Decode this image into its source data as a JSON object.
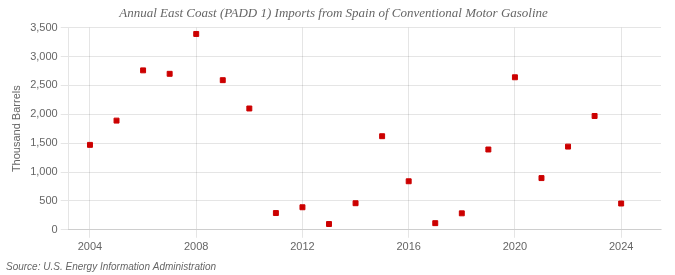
{
  "chart_data": {
    "type": "scatter",
    "title": "Annual East Coast (PADD 1) Imports from Spain of Conventional Motor Gasoline",
    "ylabel": "Thousand Barrels",
    "source": "Source: U.S. Energy Information Administration",
    "x": [
      2004,
      2005,
      2006,
      2007,
      2008,
      2009,
      2010,
      2011,
      2012,
      2013,
      2014,
      2015,
      2016,
      2017,
      2018,
      2019,
      2020,
      2021,
      2022,
      2023,
      2024
    ],
    "values": [
      1470,
      1890,
      2760,
      2700,
      3390,
      2590,
      2100,
      290,
      390,
      100,
      460,
      1620,
      840,
      115,
      285,
      1390,
      2640,
      895,
      1440,
      1970,
      455
    ],
    "color": "#cc0000",
    "marker": "square",
    "xlim": [
      2003.2,
      2025.5
    ],
    "ylim": [
      0,
      3500
    ],
    "xticks": [
      2004,
      2008,
      2012,
      2016,
      2020,
      2024
    ],
    "yticks": [
      0,
      500,
      {
        "value": 1000,
        "label": "1,000"
      },
      {
        "value": 1500,
        "label": "1,500"
      },
      {
        "value": 2000,
        "label": "2,000"
      },
      {
        "value": 2500,
        "label": "2,500"
      },
      {
        "value": 3000,
        "label": "3,000"
      },
      {
        "value": 3500,
        "label": "3,500"
      }
    ],
    "grid": true
  }
}
